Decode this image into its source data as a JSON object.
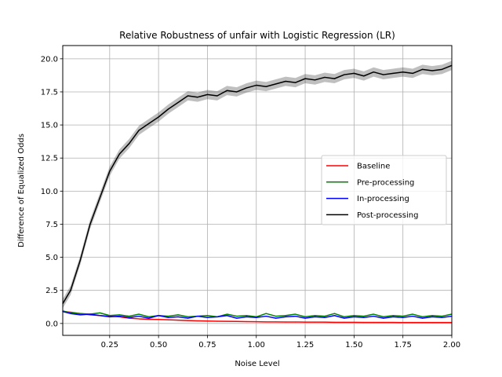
{
  "chart_data": {
    "type": "line",
    "title": "Relative Robustness of unfair with Logistic Regression (LR)",
    "xlabel": "Noise Level",
    "ylabel": "Difference of Equalized Odds",
    "xlim": [
      0.01,
      2.0
    ],
    "ylim": [
      -0.9,
      21.0
    ],
    "x_ticks": [
      0.25,
      0.5,
      0.75,
      1.0,
      1.25,
      1.5,
      1.75,
      2.0
    ],
    "x_tick_labels": [
      "0.25",
      "0.50",
      "0.75",
      "1.00",
      "1.25",
      "1.50",
      "1.75",
      "2.00"
    ],
    "y_ticks": [
      0.0,
      2.5,
      5.0,
      7.5,
      10.0,
      12.5,
      15.0,
      17.5,
      20.0
    ],
    "y_tick_labels": [
      "0.0",
      "2.5",
      "5.0",
      "7.5",
      "10.0",
      "12.5",
      "15.0",
      "17.5",
      "20.0"
    ],
    "grid": true,
    "legend_position": "center-right",
    "x": [
      0.01,
      0.05,
      0.1,
      0.15,
      0.2,
      0.25,
      0.3,
      0.35,
      0.4,
      0.45,
      0.5,
      0.55,
      0.6,
      0.65,
      0.7,
      0.75,
      0.8,
      0.85,
      0.9,
      0.95,
      1.0,
      1.05,
      1.1,
      1.15,
      1.2,
      1.25,
      1.3,
      1.35,
      1.4,
      1.45,
      1.5,
      1.55,
      1.6,
      1.65,
      1.7,
      1.75,
      1.8,
      1.85,
      1.9,
      1.95,
      2.0
    ],
    "series": [
      {
        "name": "Baseline",
        "color": "#ff0000",
        "values": [
          0.9,
          0.85,
          0.75,
          0.65,
          0.6,
          0.55,
          0.5,
          0.4,
          0.35,
          0.32,
          0.3,
          0.28,
          0.25,
          0.22,
          0.2,
          0.18,
          0.17,
          0.16,
          0.15,
          0.14,
          0.13,
          0.12,
          0.12,
          0.11,
          0.11,
          0.1,
          0.1,
          0.1,
          0.09,
          0.09,
          0.09,
          0.08,
          0.08,
          0.08,
          0.08,
          0.07,
          0.07,
          0.07,
          0.07,
          0.07,
          0.07
        ]
      },
      {
        "name": "Pre-processing",
        "color": "#008000",
        "values": [
          0.95,
          0.8,
          0.75,
          0.7,
          0.8,
          0.6,
          0.65,
          0.55,
          0.7,
          0.5,
          0.6,
          0.55,
          0.65,
          0.5,
          0.55,
          0.6,
          0.5,
          0.7,
          0.55,
          0.6,
          0.5,
          0.75,
          0.55,
          0.6,
          0.7,
          0.5,
          0.6,
          0.55,
          0.75,
          0.5,
          0.6,
          0.55,
          0.7,
          0.5,
          0.6,
          0.55,
          0.7,
          0.5,
          0.6,
          0.55,
          0.7
        ]
      },
      {
        "name": "In-processing",
        "color": "#0000ff",
        "values": [
          0.9,
          0.75,
          0.65,
          0.7,
          0.6,
          0.5,
          0.55,
          0.45,
          0.55,
          0.4,
          0.6,
          0.45,
          0.5,
          0.4,
          0.55,
          0.45,
          0.5,
          0.6,
          0.4,
          0.5,
          0.45,
          0.55,
          0.4,
          0.5,
          0.55,
          0.4,
          0.5,
          0.45,
          0.6,
          0.4,
          0.5,
          0.45,
          0.55,
          0.4,
          0.5,
          0.45,
          0.55,
          0.4,
          0.5,
          0.45,
          0.55
        ]
      },
      {
        "name": "Post-processing",
        "color": "#000000",
        "values": [
          1.5,
          2.5,
          4.8,
          7.5,
          9.5,
          11.5,
          12.8,
          13.6,
          14.6,
          15.1,
          15.6,
          16.2,
          16.7,
          17.2,
          17.1,
          17.3,
          17.2,
          17.6,
          17.5,
          17.8,
          18.0,
          17.9,
          18.1,
          18.3,
          18.2,
          18.5,
          18.4,
          18.6,
          18.5,
          18.8,
          18.9,
          18.7,
          19.0,
          18.8,
          18.9,
          19.0,
          18.9,
          19.2,
          19.1,
          19.2,
          19.5
        ]
      }
    ]
  }
}
